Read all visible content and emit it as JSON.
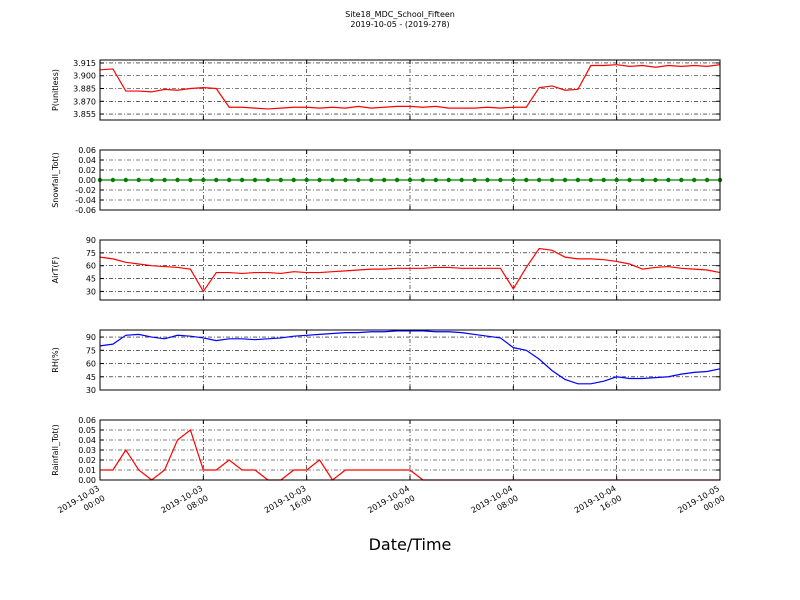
{
  "title": "Site18_MDC_School_Fifteen",
  "subtitle": "2019-10-05 - (2019-278)",
  "xlabel": "Date/Time",
  "chart_data": {
    "x": [
      "2019-10-03 00:00",
      "2019-10-03 01:00",
      "2019-10-03 02:00",
      "2019-10-03 03:00",
      "2019-10-03 04:00",
      "2019-10-03 05:00",
      "2019-10-03 06:00",
      "2019-10-03 07:00",
      "2019-10-03 08:00",
      "2019-10-03 09:00",
      "2019-10-03 10:00",
      "2019-10-03 11:00",
      "2019-10-03 12:00",
      "2019-10-03 13:00",
      "2019-10-03 14:00",
      "2019-10-03 15:00",
      "2019-10-03 16:00",
      "2019-10-03 17:00",
      "2019-10-03 18:00",
      "2019-10-03 19:00",
      "2019-10-03 20:00",
      "2019-10-03 21:00",
      "2019-10-03 22:00",
      "2019-10-03 23:00",
      "2019-10-04 00:00",
      "2019-10-04 01:00",
      "2019-10-04 02:00",
      "2019-10-04 03:00",
      "2019-10-04 04:00",
      "2019-10-04 05:00",
      "2019-10-04 06:00",
      "2019-10-04 07:00",
      "2019-10-04 08:00",
      "2019-10-04 09:00",
      "2019-10-04 10:00",
      "2019-10-04 11:00",
      "2019-10-04 12:00",
      "2019-10-04 13:00",
      "2019-10-04 14:00",
      "2019-10-04 15:00",
      "2019-10-04 16:00",
      "2019-10-04 17:00",
      "2019-10-04 18:00",
      "2019-10-04 19:00",
      "2019-10-04 20:00",
      "2019-10-04 21:00",
      "2019-10-04 22:00",
      "2019-10-04 23:00",
      "2019-10-05 00:00"
    ],
    "xlim": [
      "2019-10-03 00:00",
      "2019-10-05 00:00"
    ],
    "xticks": [
      "2019-10-03 00:00",
      "2019-10-03 08:00",
      "2019-10-03 16:00",
      "2019-10-04 00:00",
      "2019-10-04 08:00",
      "2019-10-04 16:00",
      "2019-10-05 00:00"
    ],
    "panels": [
      {
        "type": "line",
        "ylabel": "P(unitless)",
        "ylim": [
          3.848,
          3.9185
        ],
        "grid": true,
        "yticks": [
          3.855,
          {
            "value": 3.87,
            "label": "3.870"
          },
          3.885,
          {
            "value": 3.9,
            "label": "3.900"
          },
          3.915
        ],
        "series": [
          {
            "color": "#ff0000",
            "values": [
              3.907,
              3.908,
              3.882,
              3.882,
              3.881,
              3.884,
              3.883,
              3.885,
              3.886,
              3.885,
              3.863,
              3.863,
              3.862,
              3.861,
              3.862,
              3.863,
              3.863,
              3.862,
              3.863,
              3.862,
              3.864,
              3.862,
              3.863,
              3.864,
              3.864,
              3.863,
              3.864,
              3.862,
              3.862,
              3.862,
              3.863,
              3.862,
              3.863,
              3.863,
              3.886,
              3.888,
              3.883,
              3.884,
              3.912,
              3.912,
              3.913,
              3.911,
              3.912,
              3.91,
              3.912,
              3.911,
              3.912,
              3.911,
              3.913
            ]
          }
        ]
      },
      {
        "type": "line",
        "ylabel": "Snowfall_Tot()",
        "ylim": [
          -0.06,
          0.06
        ],
        "grid": true,
        "marker": true,
        "yticks": [
          -0.06,
          -0.04,
          -0.02,
          {
            "value": 0,
            "label": "0.00"
          },
          0.02,
          0.04,
          0.06
        ],
        "series": [
          {
            "color": "#008000",
            "values": [
              0,
              0,
              0,
              0,
              0,
              0,
              0,
              0,
              0,
              0,
              0,
              0,
              0,
              0,
              0,
              0,
              0,
              0,
              0,
              0,
              0,
              0,
              0,
              0,
              0,
              0,
              0,
              0,
              0,
              0,
              0,
              0,
              0,
              0,
              0,
              0,
              0,
              0,
              0,
              0,
              0,
              0,
              0,
              0,
              0,
              0,
              0,
              0,
              0
            ]
          }
        ]
      },
      {
        "type": "line",
        "ylabel": "AirT(F)",
        "ylim": [
          20,
          90
        ],
        "grid": true,
        "yticks": [
          30,
          45,
          60,
          75,
          90
        ],
        "series": [
          {
            "color": "#ff0000",
            "values": [
              70,
              68,
              64,
              62,
              60,
              59,
              58,
              56,
              30,
              52,
              52,
              51,
              52,
              52,
              51,
              53,
              52,
              52,
              53,
              54,
              55,
              56,
              56,
              57,
              57,
              57,
              58,
              58,
              57,
              57,
              57,
              57,
              33,
              58,
              80,
              78,
              70,
              68,
              68,
              67,
              65,
              62,
              56,
              58,
              59,
              57,
              56,
              55,
              52
            ]
          }
        ]
      },
      {
        "type": "line",
        "ylabel": "RH(%)",
        "ylim": [
          30,
          98
        ],
        "grid": true,
        "yticks": [
          30,
          45,
          60,
          75,
          90
        ],
        "series": [
          {
            "color": "#0000ff",
            "values": [
              80,
              82,
              92,
              93,
              90,
              88,
              92,
              91,
              89,
              86,
              88,
              88,
              87,
              88,
              89,
              91,
              92,
              93,
              94,
              95,
              95,
              96,
              96,
              97,
              97,
              97,
              96,
              96,
              95,
              93,
              91,
              89,
              78,
              75,
              65,
              52,
              42,
              37,
              37,
              40,
              45,
              43,
              43,
              44,
              45,
              48,
              50,
              51,
              54
            ]
          }
        ]
      },
      {
        "type": "line",
        "ylabel": "Rainfall_Tot()",
        "ylim": [
          0,
          0.06
        ],
        "grid": true,
        "yticks": [
          {
            "value": 0,
            "label": "0.00"
          },
          0.01,
          0.02,
          0.03,
          0.04,
          0.05,
          0.06
        ],
        "series": [
          {
            "color": "#ff0000",
            "values": [
              0.01,
              0.01,
              0.03,
              0.01,
              0,
              0.01,
              0.04,
              0.05,
              0.01,
              0.01,
              0.02,
              0.01,
              0.01,
              0,
              0,
              0.01,
              0.01,
              0.02,
              0,
              0.01,
              0.01,
              0.01,
              0.01,
              0.01,
              0.01,
              0,
              0,
              0,
              0,
              0,
              0,
              0,
              0,
              0,
              0,
              0,
              0,
              0,
              0,
              0,
              0,
              0,
              0,
              0,
              0,
              0,
              0,
              0,
              0
            ]
          }
        ]
      }
    ]
  }
}
